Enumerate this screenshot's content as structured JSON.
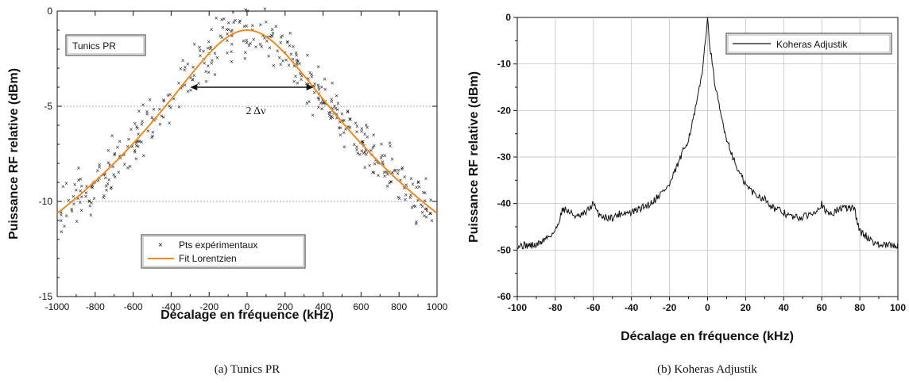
{
  "chart_data": [
    {
      "type": "scatter",
      "panel_label": "Tunics PR",
      "caption": "(a)  Tunics PR",
      "xlabel": "Décalage en fréquence (kHz)",
      "ylabel": "Puissance RF relative (dBm)",
      "xlim": [
        -1000,
        1000
      ],
      "ylim": [
        -15,
        0
      ],
      "xticks": [
        "-1000",
        "-800",
        "-600",
        "-400",
        "-200",
        "0",
        "200",
        "400",
        "600",
        "800",
        "1000"
      ],
      "yticks": [
        "0",
        "-5",
        "-10",
        "-15"
      ],
      "annotation": "2 Δν",
      "annotation_span": [
        -300,
        350
      ],
      "annotation_level": -4.0,
      "grid_y": [
        -5,
        -10
      ],
      "legend_position": "bottom-center",
      "series": [
        {
          "name": "Pts expérimentaux",
          "kind": "scatter",
          "marker": "x",
          "color": "#222222",
          "model": {
            "lorentzian_peak_dBm": -1.0,
            "half_width_kHz": 350,
            "noise_dB": 0.6,
            "n_points": 420
          }
        },
        {
          "name": "Fit Lorentzien",
          "kind": "line",
          "color": "#f08a1c",
          "model": {
            "lorentzian_peak_dBm": -1.0,
            "half_width_kHz": 350
          }
        }
      ],
      "colors": {
        "fit": "#f08a1c",
        "points": "#222222",
        "grid": "#888888"
      }
    },
    {
      "type": "line",
      "caption": "(b)  Koheras Adjustik",
      "xlabel": "Décalage en fréquence (kHz)",
      "ylabel": "Puissance RF relative (dBm)",
      "xlim": [
        -100,
        100
      ],
      "ylim": [
        -60,
        0
      ],
      "xticks": [
        "-100",
        "-80",
        "-60",
        "-40",
        "-20",
        "0",
        "20",
        "40",
        "60",
        "80",
        "100"
      ],
      "yticks": [
        "0",
        "-10",
        "-20",
        "-30",
        "-40",
        "-50",
        "-60"
      ],
      "grid": true,
      "legend_position": "top-right",
      "series": [
        {
          "name": "Koheras Adjustik",
          "color": "#111111",
          "key_points": [
            [
              -100,
              -49
            ],
            [
              -90,
              -49
            ],
            [
              -80,
              -46
            ],
            [
              -76,
              -41
            ],
            [
              -72,
              -42
            ],
            [
              -68,
              -43
            ],
            [
              -64,
              -42
            ],
            [
              -60,
              -40
            ],
            [
              -58,
              -42
            ],
            [
              -54,
              -43
            ],
            [
              -50,
              -43
            ],
            [
              -45,
              -42
            ],
            [
              -40,
              -42
            ],
            [
              -35,
              -41
            ],
            [
              -30,
              -40
            ],
            [
              -25,
              -38
            ],
            [
              -20,
              -36
            ],
            [
              -15,
              -31
            ],
            [
              -10,
              -26
            ],
            [
              -7,
              -21
            ],
            [
              -5,
              -17
            ],
            [
              -3,
              -12
            ],
            [
              -1,
              -5
            ],
            [
              0,
              0
            ],
            [
              1,
              -5
            ],
            [
              3,
              -12
            ],
            [
              5,
              -17
            ],
            [
              7,
              -21
            ],
            [
              10,
              -26
            ],
            [
              15,
              -32
            ],
            [
              20,
              -36
            ],
            [
              25,
              -38
            ],
            [
              30,
              -39
            ],
            [
              35,
              -41
            ],
            [
              40,
              -42
            ],
            [
              45,
              -43
            ],
            [
              50,
              -43
            ],
            [
              55,
              -42
            ],
            [
              58,
              -41
            ],
            [
              60,
              -40
            ],
            [
              62,
              -42
            ],
            [
              66,
              -42
            ],
            [
              70,
              -41
            ],
            [
              74,
              -41
            ],
            [
              77,
              -41
            ],
            [
              80,
              -46
            ],
            [
              90,
              -49
            ],
            [
              100,
              -49
            ]
          ]
        }
      ],
      "colors": {
        "line": "#111111",
        "grid": "#bbbbbb"
      }
    }
  ]
}
